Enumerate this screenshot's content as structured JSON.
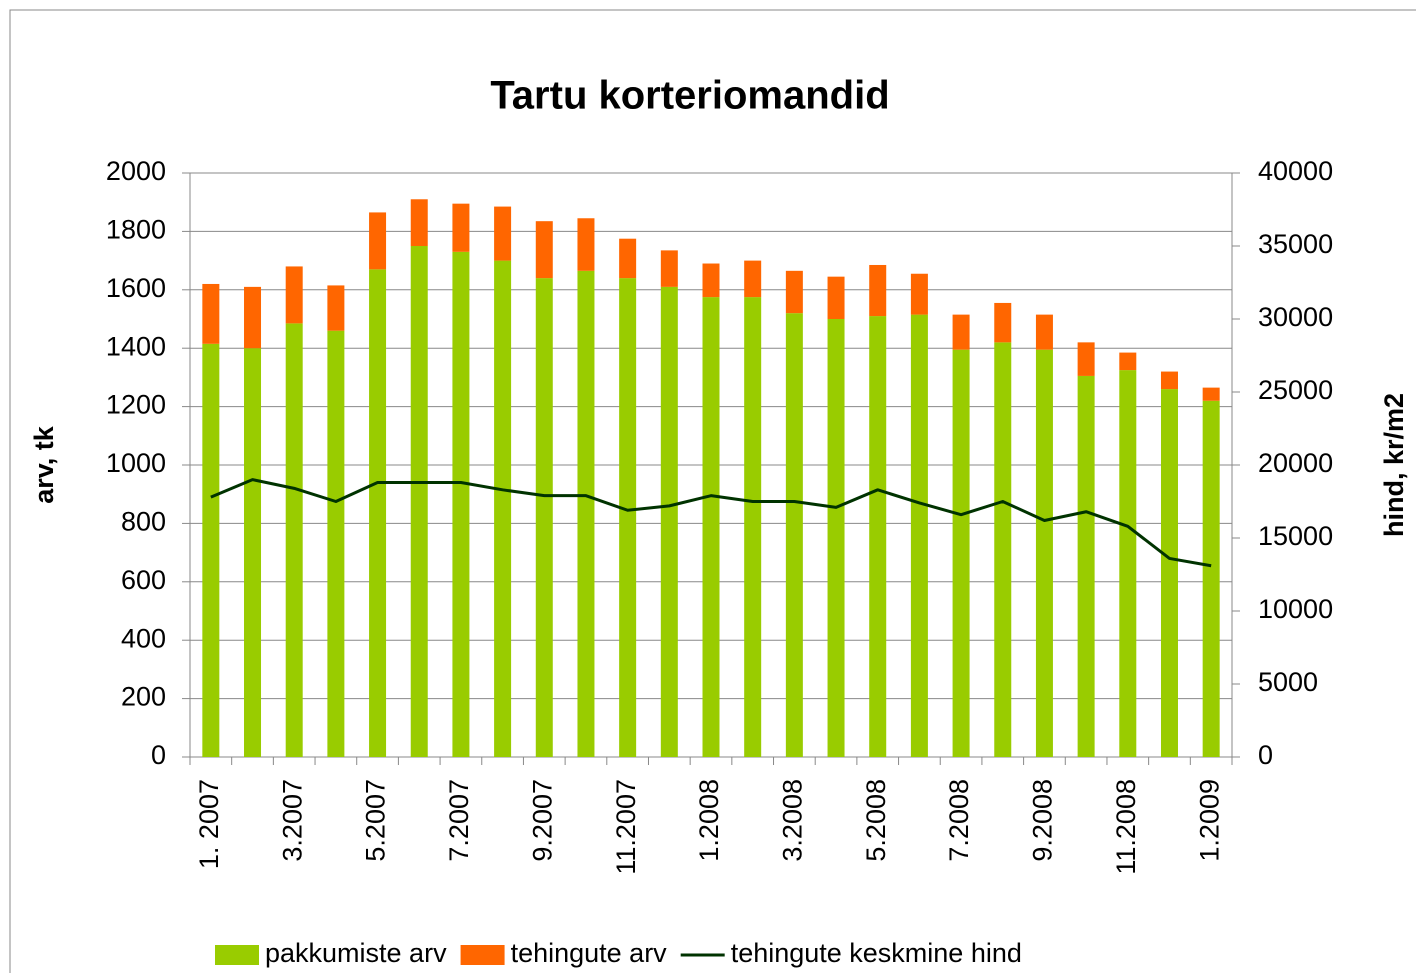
{
  "chart_data": {
    "type": "bar",
    "title": "Tartu korteriomandid",
    "categories": [
      "1. 2007",
      null,
      "3.2007",
      null,
      "5.2007",
      null,
      "7.2007",
      null,
      "9.2007",
      null,
      "11.2007",
      null,
      "1.2008",
      null,
      "3.2008",
      null,
      "5.2008",
      null,
      "7.2008",
      null,
      "9.2008",
      null,
      "11.2008",
      null,
      "1.2009"
    ],
    "y_label": "arv, tk",
    "y2_label": "hind, kr/m2",
    "ylim": [
      0,
      2000
    ],
    "yticks": [
      0,
      200,
      400,
      600,
      800,
      1000,
      1200,
      1400,
      1600,
      1800,
      2000
    ],
    "y2lim": [
      0,
      40000
    ],
    "y2ticks": [
      0,
      5000,
      10000,
      15000,
      20000,
      25000,
      30000,
      35000,
      40000
    ],
    "grid": true,
    "stacked": true,
    "legend": "bottom",
    "series": [
      {
        "name": "pakkumiste arv",
        "color": "#99cc00",
        "type": "bar",
        "values": [
          1415,
          1400,
          1485,
          1460,
          1670,
          1750,
          1730,
          1700,
          1640,
          1665,
          1640,
          1610,
          1575,
          1575,
          1520,
          1500,
          1510,
          1515,
          1395,
          1420,
          1395,
          1305,
          1325,
          1260,
          1220
        ]
      },
      {
        "name": "tehingute arv",
        "color": "#ff6600",
        "type": "bar",
        "values": [
          205,
          210,
          195,
          155,
          195,
          160,
          165,
          185,
          195,
          180,
          135,
          125,
          115,
          125,
          145,
          145,
          175,
          140,
          120,
          135,
          120,
          115,
          60,
          60,
          45
        ]
      },
      {
        "name": "tehingute keskmine hind",
        "color": "#003300",
        "type": "line",
        "axis": "y2",
        "values": [
          17800,
          19000,
          18400,
          17500,
          18800,
          18800,
          18800,
          18300,
          17900,
          17900,
          16900,
          17200,
          17900,
          17500,
          17500,
          17100,
          18300,
          17400,
          16600,
          17500,
          16200,
          16800,
          15800,
          13600,
          13100
        ]
      }
    ]
  }
}
